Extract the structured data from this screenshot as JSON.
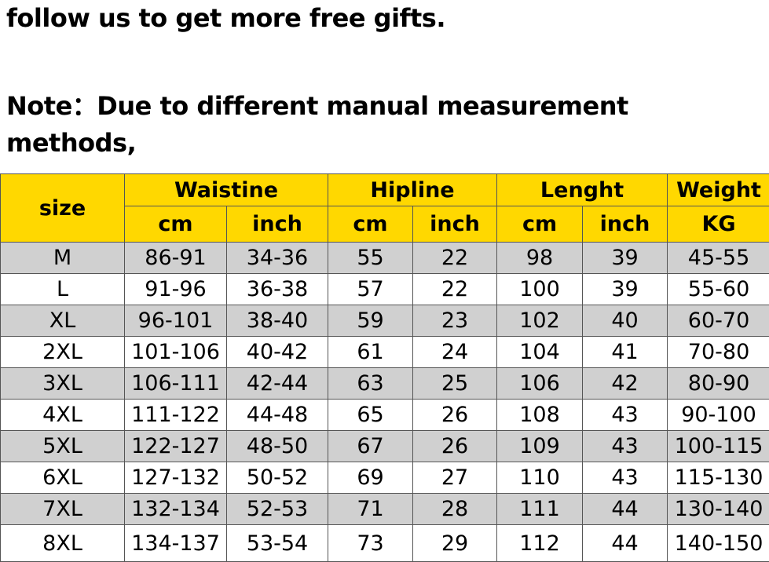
{
  "text": {
    "line1": "follow us to get more free gifts.",
    "note1": "Note：Due to different manual measurement",
    "note2": "methods,"
  },
  "table": {
    "size_header": "size",
    "groups": [
      "Waistine",
      "Hipline",
      "Lenght",
      "Weight"
    ],
    "units": [
      "cm",
      "inch",
      "cm",
      "inch",
      "cm",
      "inch",
      "KG"
    ],
    "rows": [
      [
        "M",
        "86-91",
        "34-36",
        55,
        22,
        98,
        39,
        "45-55"
      ],
      [
        "L",
        "91-96",
        "36-38",
        57,
        22,
        100,
        39,
        "55-60"
      ],
      [
        "XL",
        "96-101",
        "38-40",
        59,
        23,
        102,
        40,
        "60-70"
      ],
      [
        "2XL",
        "101-106",
        "40-42",
        61,
        24,
        104,
        41,
        "70-80"
      ],
      [
        "3XL",
        "106-111",
        "42-44",
        63,
        25,
        106,
        42,
        "80-90"
      ],
      [
        "4XL",
        "111-122",
        "44-48",
        65,
        26,
        108,
        43,
        "90-100"
      ],
      [
        "5XL",
        "122-127",
        "48-50",
        67,
        26,
        109,
        43,
        "100-115"
      ],
      [
        "6XL",
        "127-132",
        "50-52",
        69,
        27,
        110,
        43,
        "115-130"
      ],
      [
        "7XL",
        "132-134",
        "52-53",
        71,
        28,
        111,
        44,
        "130-140"
      ],
      [
        "8XL",
        "134-137",
        "53-54",
        73,
        29,
        112,
        44,
        "140-150"
      ]
    ]
  }
}
